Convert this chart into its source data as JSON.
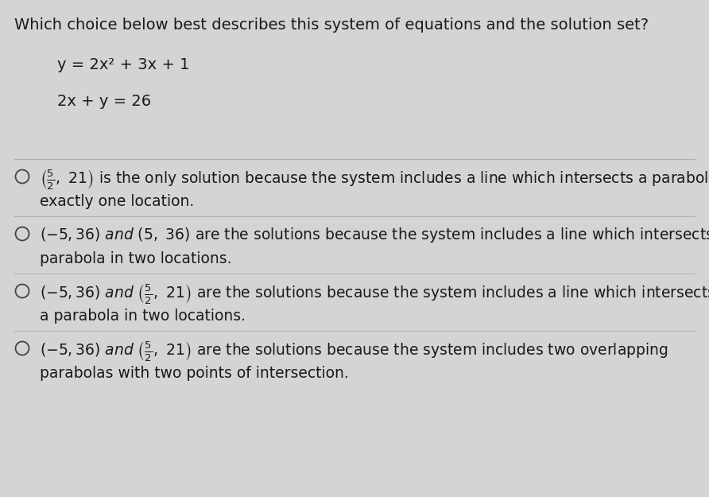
{
  "background_color": "#d4d4d4",
  "text_color": "#1a1a1a",
  "circle_color": "#444444",
  "divider_color": "#b0b0b0",
  "title": "Which choice below best describes this system of equations and the solution set?",
  "eq1": "y = 2x² + 3x + 1",
  "eq2": "2x + y = 26",
  "title_fontsize": 14.0,
  "eq_fontsize": 14.0,
  "opt_fontsize": 13.5,
  "opt2_fontsize": 13.5
}
